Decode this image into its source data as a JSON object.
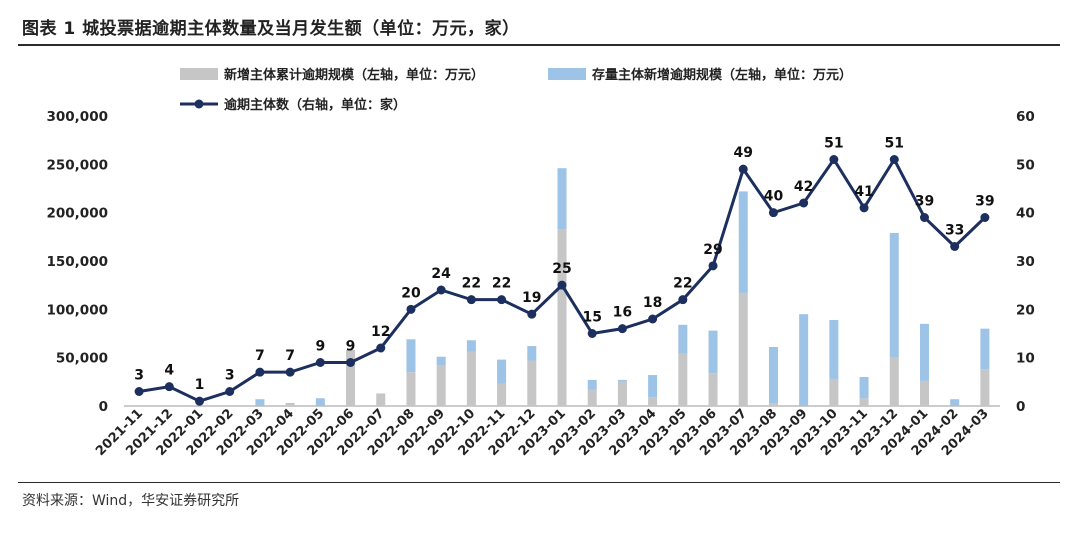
{
  "title": "图表 1  城投票据逾期主体数量及当月发生额（单位：万元，家）",
  "source": "资料来源：Wind，华安证券研究所",
  "chart_data": {
    "type": "bar",
    "categories": [
      "2021-11",
      "2021-12",
      "2022-01",
      "2022-02",
      "2022-03",
      "2022-04",
      "2022-05",
      "2022-06",
      "2022-07",
      "2022-08",
      "2022-09",
      "2022-10",
      "2022-11",
      "2022-12",
      "2023-01",
      "2023-02",
      "2023-03",
      "2023-04",
      "2023-05",
      "2023-06",
      "2023-07",
      "2023-08",
      "2023-09",
      "2023-10",
      "2023-11",
      "2023-12",
      "2024-01",
      "2024-02",
      "2024-03"
    ],
    "series": [
      {
        "name": "新增主体累计逾期规模（左轴，单位：万元）",
        "kind": "bar",
        "axis": "left",
        "color": "#c6c6c6",
        "values": [
          0,
          0,
          0,
          0,
          0,
          2000,
          0,
          58000,
          13000,
          35000,
          42000,
          56000,
          23000,
          47000,
          183000,
          17000,
          25000,
          9000,
          54000,
          34000,
          117000,
          3000,
          0,
          28000,
          8000,
          50000,
          26000,
          0,
          38000
        ]
      },
      {
        "name": "存量主体新增逾期规模（左轴，单位：万元）",
        "kind": "bar",
        "axis": "left",
        "color": "#9dc3e6",
        "values": [
          0,
          0,
          0,
          0,
          7000,
          1000,
          8000,
          0,
          0,
          34000,
          9000,
          12000,
          25000,
          15000,
          63000,
          10000,
          2000,
          23000,
          30000,
          44000,
          105000,
          58000,
          95000,
          61000,
          22000,
          129000,
          59000,
          7000,
          42000
        ]
      },
      {
        "name": "逾期主体数（右轴，单位：家）",
        "kind": "line",
        "axis": "right",
        "color": "#1c2f5e",
        "values": [
          3,
          4,
          1,
          3,
          7,
          7,
          9,
          9,
          12,
          20,
          24,
          22,
          22,
          19,
          25,
          15,
          16,
          18,
          22,
          29,
          49,
          40,
          42,
          51,
          41,
          51,
          39,
          33,
          39
        ]
      }
    ],
    "yleft": {
      "min": 0,
      "max": 300000,
      "ticks": [
        "0",
        "50,000",
        "100,000",
        "150,000",
        "200,000",
        "250,000",
        "300,000"
      ]
    },
    "yright": {
      "min": 0,
      "max": 60,
      "ticks": [
        "0",
        "10",
        "20",
        "30",
        "40",
        "50",
        "60"
      ]
    },
    "grid": false,
    "legend_position": "top"
  }
}
